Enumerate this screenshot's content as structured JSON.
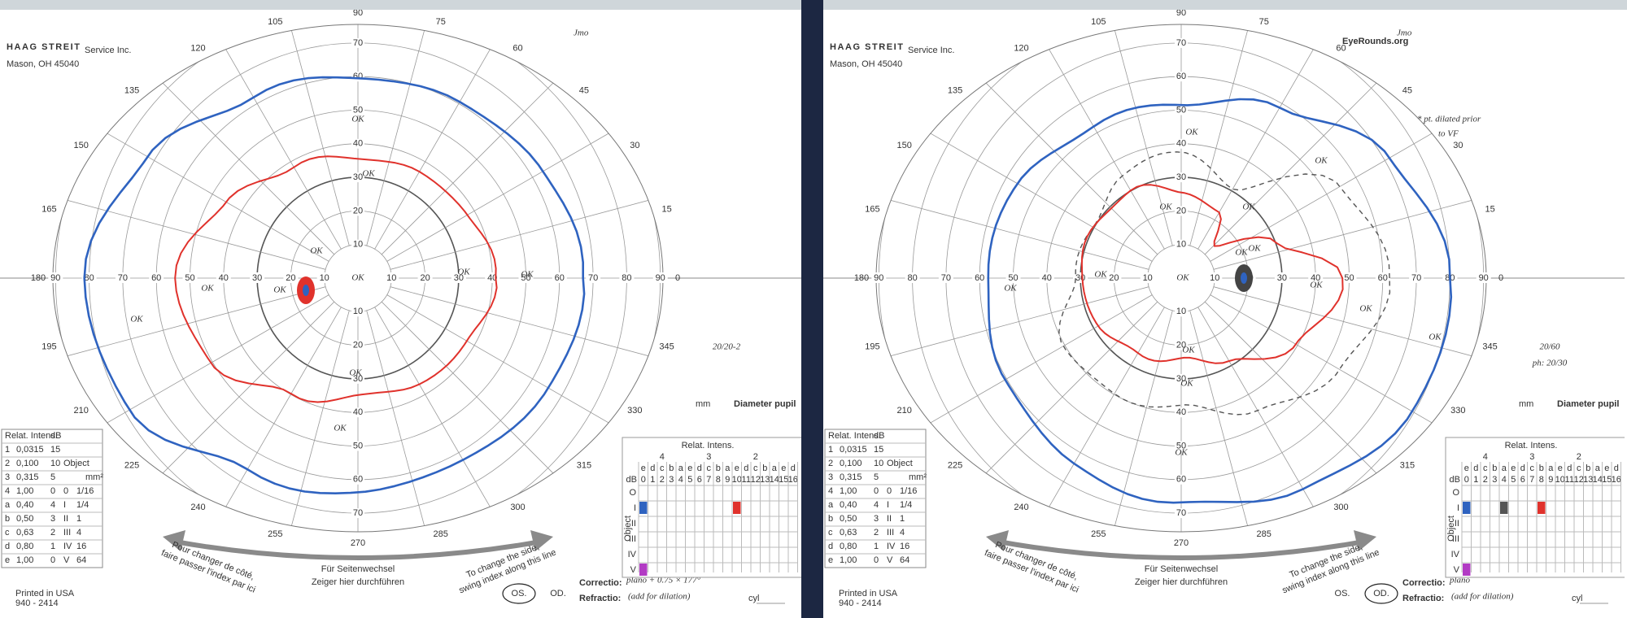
{
  "watermark": "EyeRounds.org",
  "form": {
    "brand": "HAAG STREIT",
    "company": "Service Inc.",
    "address": "Mason, OH 45040",
    "meridians": [
      "0",
      "15",
      "30",
      "45",
      "60",
      "75",
      "90",
      "105",
      "120",
      "135",
      "150",
      "165",
      "180",
      "195",
      "210",
      "225",
      "240",
      "255",
      "270",
      "285",
      "300",
      "315",
      "330",
      "345"
    ],
    "eccentricities": [
      "10",
      "20",
      "30",
      "40",
      "50",
      "60",
      "70",
      "80",
      "90"
    ],
    "pupil_label": "Diameter pupil",
    "pupil_unit": "mm",
    "switch_line_1": "Für Seitenwechsel",
    "switch_line_2": "Zeiger hier durchführen",
    "left_arrow_text": [
      "Pour changer de côté,",
      "faire passer l'index par ici"
    ],
    "right_arrow_text": [
      "To change the side,",
      "swing index along this line"
    ],
    "eye_labels": [
      "OS.",
      "OD."
    ],
    "correctio": "Correctio:",
    "refractio": "Refractio:",
    "cyl": "cyl",
    "printed": "Printed in USA",
    "form_number": "940 - 2414",
    "intensity_table": {
      "header": [
        "Relat. Intens.",
        "dB"
      ],
      "object_header": "Object",
      "area_header": "mm²",
      "rows": [
        [
          "1",
          "0,0315",
          "15"
        ],
        [
          "2",
          "0,100",
          "10"
        ],
        [
          "3",
          "0,315",
          "5"
        ],
        [
          "4",
          "1,00",
          "0",
          "0",
          "1/16"
        ],
        [
          "a",
          "0,40",
          "4",
          "I",
          "1/4"
        ],
        [
          "b",
          "0,50",
          "3",
          "II",
          "1"
        ],
        [
          "c",
          "0,63",
          "2",
          "III",
          "4"
        ],
        [
          "d",
          "0,80",
          "1",
          "IV",
          "16"
        ],
        [
          "e",
          "1,00",
          "0",
          "V",
          "64"
        ]
      ]
    },
    "stimulus_grid": {
      "title": "Relat. Intens.",
      "groups": [
        "4",
        "3",
        "2"
      ],
      "letters": [
        "e",
        "d",
        "c",
        "b",
        "a",
        "e",
        "d",
        "c",
        "b",
        "a",
        "e",
        "d",
        "c",
        "b",
        "a",
        "e",
        "d"
      ],
      "db_label": "dB",
      "db_steps": [
        "0",
        "1",
        "2",
        "3",
        "4",
        "5",
        "6",
        "7",
        "8",
        "9",
        "10",
        "11",
        "12",
        "13",
        "14",
        "15",
        "16"
      ],
      "objects": [
        "O",
        "I",
        "II",
        "III",
        "IV",
        "V"
      ],
      "object_label": "Object"
    }
  },
  "panels": [
    {
      "initials": "Jmo",
      "circled_eye": "OS.",
      "acuity": [
        "20/20-2"
      ],
      "note": [],
      "correction": "plano + 0.75 × 177°",
      "refraction_note": "(add for dilation)",
      "ok_labels": [
        {
          "text": "OK",
          "color": "#2f5fb3"
        },
        {
          "text": "OK",
          "color": "#d9332b"
        },
        {
          "text": "OK",
          "color": "#d9332b"
        },
        {
          "text": "OK",
          "color": "#d9332b"
        },
        {
          "text": "OK",
          "color": "#b23bc4"
        },
        {
          "text": "OK",
          "color": "#d9332b"
        },
        {
          "text": "OK",
          "color": "#d9332b"
        },
        {
          "text": "OK",
          "color": "#2f5fb3"
        },
        {
          "text": "OK",
          "color": "#2f5fb3"
        },
        {
          "text": "OK",
          "color": "#d9332b"
        },
        {
          "text": "OK",
          "color": "#2f5fb3"
        }
      ]
    },
    {
      "initials": "Jmo",
      "circled_eye": "OD.",
      "acuity": [
        "20/60",
        "ph: 20/30"
      ],
      "note": [
        "* pt. dilated prior",
        "to VF"
      ],
      "correction": "plano",
      "refraction_note": "(add for dilation)",
      "ok_labels": [
        {
          "text": "OK",
          "color": "#2f5fb3"
        },
        {
          "text": "OK",
          "color": "#2f5fb3"
        },
        {
          "text": "OK",
          "color": "#2f5fb3"
        },
        {
          "text": "OK",
          "color": "#2f5fb3"
        },
        {
          "text": "OK",
          "color": "#d9332b"
        },
        {
          "text": "OK",
          "color": "#d9332b"
        },
        {
          "text": "OK",
          "color": "#d9332b"
        },
        {
          "text": "OK",
          "color": "#b23bc4"
        },
        {
          "text": "OK",
          "color": "#d9332b"
        },
        {
          "text": "OK",
          "color": "#555555"
        },
        {
          "text": "OK",
          "color": "#2f5fb3"
        },
        {
          "text": "OK",
          "color": "#2f5fb3"
        },
        {
          "text": "OK",
          "color": "#d9332b"
        },
        {
          "text": "OK",
          "color": "#555555"
        },
        {
          "text": "OK",
          "color": "#2f5fb3"
        }
      ]
    }
  ]
}
